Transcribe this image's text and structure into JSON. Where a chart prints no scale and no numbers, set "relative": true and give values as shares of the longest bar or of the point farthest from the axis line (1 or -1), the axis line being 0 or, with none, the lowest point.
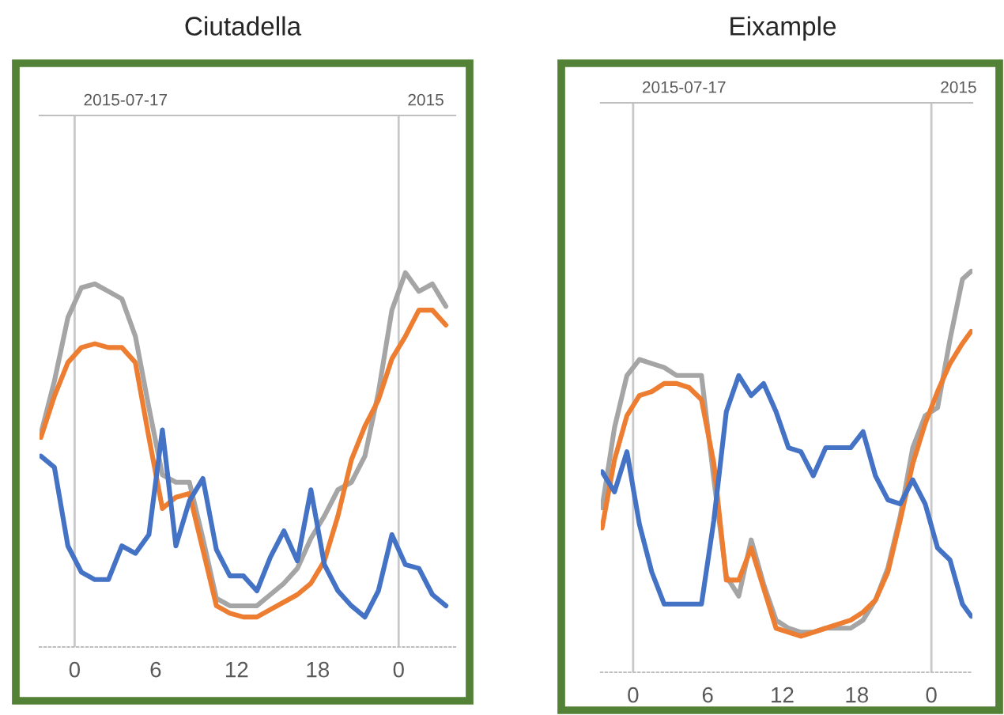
{
  "chart_data": [
    {
      "type": "line",
      "title": "Ciutadella",
      "relative": true,
      "legend": false,
      "grid": false,
      "x": [
        "2015-07-16T21:30",
        "2015-07-16T22:30",
        "2015-07-16T23:30",
        "2015-07-17T00:30",
        "2015-07-17T01:30",
        "2015-07-17T02:30",
        "2015-07-17T03:30",
        "2015-07-17T04:30",
        "2015-07-17T05:30",
        "2015-07-17T06:30",
        "2015-07-17T07:30",
        "2015-07-17T08:30",
        "2015-07-17T09:30",
        "2015-07-17T10:30",
        "2015-07-17T11:30",
        "2015-07-17T12:30",
        "2015-07-17T13:30",
        "2015-07-17T14:30",
        "2015-07-17T15:30",
        "2015-07-17T16:30",
        "2015-07-17T17:30",
        "2015-07-17T18:30",
        "2015-07-17T19:30",
        "2015-07-17T20:30",
        "2015-07-17T21:30",
        "2015-07-17T22:30",
        "2015-07-17T23:30",
        "2015-07-18T00:30",
        "2015-07-18T01:30",
        "2015-07-18T02:30",
        "2015-07-18T03:30"
      ],
      "series": [
        {
          "color": "#a5a5a5",
          "values": [
            0.57,
            0.71,
            0.88,
            0.96,
            0.97,
            0.95,
            0.93,
            0.83,
            0.64,
            0.46,
            0.44,
            0.44,
            0.29,
            0.13,
            0.11,
            0.11,
            0.11,
            0.14,
            0.17,
            0.21,
            0.29,
            0.35,
            0.42,
            0.44,
            0.51,
            0.68,
            0.9,
            1.0,
            0.95,
            0.97,
            0.91
          ]
        },
        {
          "color": "#ed7d31",
          "values": [
            0.56,
            0.67,
            0.76,
            0.8,
            0.81,
            0.8,
            0.8,
            0.76,
            0.56,
            0.37,
            0.4,
            0.41,
            0.26,
            0.11,
            0.09,
            0.08,
            0.08,
            0.1,
            0.12,
            0.14,
            0.17,
            0.23,
            0.35,
            0.5,
            0.59,
            0.66,
            0.77,
            0.83,
            0.9,
            0.9,
            0.86
          ]
        },
        {
          "color": "#4472c4",
          "values": [
            0.51,
            0.48,
            0.27,
            0.2,
            0.18,
            0.18,
            0.27,
            0.25,
            0.3,
            0.58,
            0.27,
            0.39,
            0.45,
            0.26,
            0.19,
            0.19,
            0.15,
            0.24,
            0.31,
            0.23,
            0.42,
            0.22,
            0.15,
            0.11,
            0.08,
            0.15,
            0.3,
            0.22,
            0.21,
            0.14,
            0.11
          ]
        }
      ],
      "xlim": [
        "2015-07-16T21:24",
        "2015-07-18T04:12"
      ],
      "xticks": [
        {
          "value": "2015-07-17T00:00",
          "label": "0"
        },
        {
          "value": "2015-07-17T06:00",
          "label": "6"
        },
        {
          "value": "2015-07-17T12:00",
          "label": "12"
        },
        {
          "value": "2015-07-17T18:00",
          "label": "18"
        },
        {
          "value": "2015-07-18T00:00",
          "label": "0"
        }
      ],
      "ref_lines": [
        {
          "axis": "x",
          "value": "2015-07-17T00:00",
          "label": "2015-07-17",
          "color": "#c8c8c8"
        },
        {
          "axis": "x",
          "value": "2015-07-18T00:00",
          "label": "2015",
          "color": "#c8c8c8"
        }
      ]
    },
    {
      "type": "line",
      "title": "Eixample",
      "relative": true,
      "legend": false,
      "grid": false,
      "x": [
        "2015-07-16T21:30",
        "2015-07-16T22:30",
        "2015-07-16T23:30",
        "2015-07-17T00:30",
        "2015-07-17T01:30",
        "2015-07-17T02:30",
        "2015-07-17T03:30",
        "2015-07-17T04:30",
        "2015-07-17T05:30",
        "2015-07-17T06:30",
        "2015-07-17T07:30",
        "2015-07-17T08:30",
        "2015-07-17T09:30",
        "2015-07-17T10:30",
        "2015-07-17T11:30",
        "2015-07-17T12:30",
        "2015-07-17T13:30",
        "2015-07-17T14:30",
        "2015-07-17T15:30",
        "2015-07-17T16:30",
        "2015-07-17T17:30",
        "2015-07-17T18:30",
        "2015-07-17T19:30",
        "2015-07-17T20:30",
        "2015-07-17T21:30",
        "2015-07-17T22:30",
        "2015-07-17T23:30",
        "2015-07-18T00:30",
        "2015-07-18T01:30",
        "2015-07-18T02:30",
        "2015-07-18T03:12"
      ],
      "series": [
        {
          "color": "#a5a5a5",
          "values": [
            0.41,
            0.61,
            0.74,
            0.78,
            0.77,
            0.76,
            0.74,
            0.74,
            0.74,
            0.48,
            0.24,
            0.19,
            0.33,
            0.22,
            0.13,
            0.11,
            0.1,
            0.1,
            0.11,
            0.11,
            0.11,
            0.13,
            0.18,
            0.26,
            0.39,
            0.56,
            0.64,
            0.66,
            0.83,
            0.98,
            1.0
          ]
        },
        {
          "color": "#ed7d31",
          "values": [
            0.36,
            0.53,
            0.64,
            0.69,
            0.7,
            0.72,
            0.72,
            0.71,
            0.68,
            0.52,
            0.23,
            0.23,
            0.31,
            0.21,
            0.11,
            0.1,
            0.09,
            0.1,
            0.11,
            0.12,
            0.13,
            0.15,
            0.18,
            0.25,
            0.38,
            0.52,
            0.62,
            0.7,
            0.77,
            0.82,
            0.85
          ]
        },
        {
          "color": "#4472c4",
          "values": [
            0.5,
            0.45,
            0.55,
            0.37,
            0.25,
            0.17,
            0.17,
            0.17,
            0.17,
            0.38,
            0.65,
            0.74,
            0.69,
            0.72,
            0.65,
            0.56,
            0.55,
            0.49,
            0.56,
            0.56,
            0.56,
            0.6,
            0.49,
            0.43,
            0.42,
            0.48,
            0.42,
            0.31,
            0.28,
            0.17,
            0.14
          ]
        }
      ],
      "xlim": [
        "2015-07-16T21:24",
        "2015-07-18T03:18"
      ],
      "xticks": [
        {
          "value": "2015-07-17T00:00",
          "label": "0"
        },
        {
          "value": "2015-07-17T06:00",
          "label": "6"
        },
        {
          "value": "2015-07-17T12:00",
          "label": "12"
        },
        {
          "value": "2015-07-17T18:00",
          "label": "18"
        },
        {
          "value": "2015-07-18T00:00",
          "label": "0"
        }
      ],
      "ref_lines": [
        {
          "axis": "x",
          "value": "2015-07-17T00:00",
          "label": "2015-07-17",
          "color": "#c8c8c8"
        },
        {
          "axis": "x",
          "value": "2015-07-18T00:00",
          "label": "2015",
          "color": "#c8c8c8"
        }
      ]
    }
  ]
}
